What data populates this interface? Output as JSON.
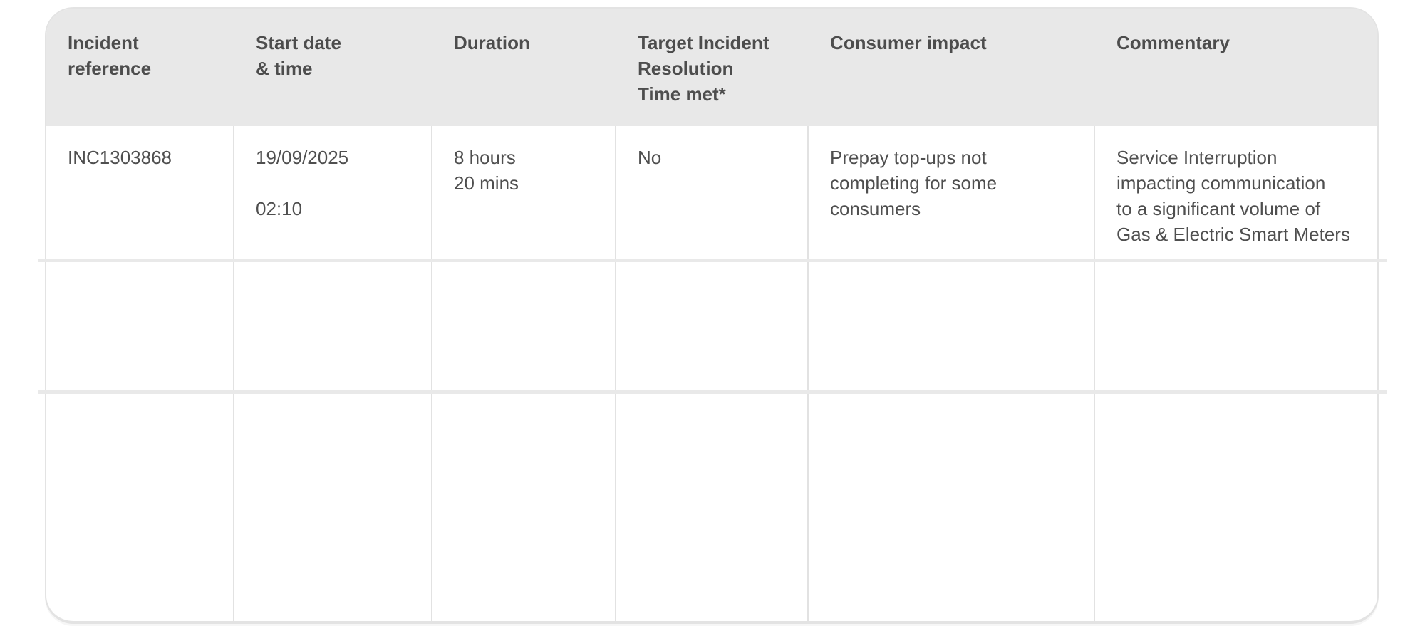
{
  "colors": {
    "page-bg": "#ffffff",
    "header-bg": "#e8e8e8",
    "card-bg": "#ffffff",
    "card-border": "#e3e3e3",
    "vline": "#e2e2e2",
    "hline": "#e9e9e9",
    "header-text": "#4d4d4d",
    "body-text": "#4f4f4f"
  },
  "table": {
    "columns": [
      {
        "id": "incident-reference",
        "label": "Incident\nreference"
      },
      {
        "id": "start-date-time",
        "label": "Start date\n& time"
      },
      {
        "id": "duration",
        "label": "Duration"
      },
      {
        "id": "target-resolution-met",
        "label": "Target Incident\nResolution\nTime met*"
      },
      {
        "id": "consumer-impact",
        "label": "Consumer impact"
      },
      {
        "id": "commentary",
        "label": "Commentary"
      }
    ],
    "rows": [
      {
        "cells": [
          "INC1303868",
          "19/09/2025\n\n02:10",
          "8 hours\n20 mins",
          "No",
          "Prepay top-ups not\ncompleting for some\nconsumers",
          "Service Interruption\nimpacting communication\nto a significant volume of\nGas & Electric Smart Meters"
        ]
      },
      {
        "cells": [
          "",
          "",
          "",
          "",
          "",
          ""
        ]
      },
      {
        "cells": [
          "",
          "",
          "",
          "",
          "",
          ""
        ]
      }
    ]
  }
}
